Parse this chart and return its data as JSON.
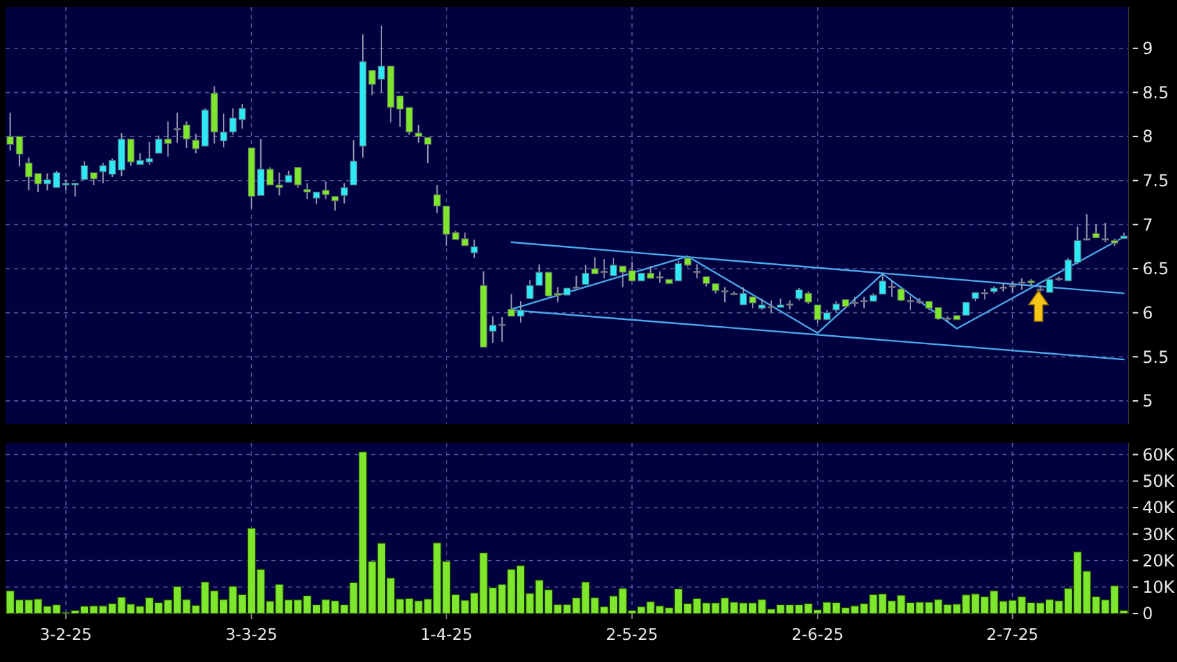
{
  "chart_data": [
    {
      "type": "candlestick",
      "ylim": [
        4.74,
        9.47
      ],
      "yticks": [
        5,
        5.5,
        6,
        6.5,
        7,
        7.5,
        8,
        8.5,
        9
      ],
      "tick_labels": "y",
      "grid": true,
      "categories": [
        null,
        null,
        null,
        null,
        null,
        null,
        null,
        null,
        null,
        null,
        null,
        null,
        null,
        null,
        null,
        null,
        null,
        null,
        null,
        null,
        null,
        null,
        null,
        null,
        null,
        null,
        null,
        null,
        null,
        null,
        null,
        null,
        null,
        null,
        null,
        null,
        null,
        null,
        null,
        null,
        null,
        null,
        null,
        null,
        null,
        null,
        null,
        null,
        null,
        null,
        null,
        null,
        null,
        null,
        null,
        null,
        null,
        null,
        null,
        null,
        null,
        null,
        null,
        null,
        null,
        null,
        null,
        null,
        null,
        null,
        null,
        null,
        null,
        null,
        null,
        null,
        null,
        null,
        null,
        null,
        null,
        null,
        null,
        null,
        null,
        null,
        null,
        null,
        null,
        null,
        null,
        null,
        null,
        null,
        null,
        null,
        null,
        null,
        null,
        null,
        null,
        null,
        null,
        null,
        null,
        null,
        null,
        null,
        null,
        null,
        null,
        null,
        null,
        null,
        null,
        null,
        null,
        null,
        null,
        null,
        null
      ],
      "ohlc": [
        [
          8.0,
          8.27,
          7.84,
          7.91
        ],
        [
          8.0,
          8.0,
          7.66,
          7.8
        ],
        [
          7.7,
          7.76,
          7.39,
          7.54
        ],
        [
          7.58,
          7.58,
          7.37,
          7.46
        ],
        [
          7.46,
          7.58,
          7.39,
          7.51
        ],
        [
          7.42,
          7.61,
          7.42,
          7.59
        ],
        [
          7.45,
          7.51,
          7.39,
          7.47
        ],
        [
          7.45,
          7.47,
          7.32,
          7.47
        ],
        [
          7.51,
          7.72,
          7.51,
          7.67
        ],
        [
          7.59,
          7.59,
          7.45,
          7.52
        ],
        [
          7.6,
          7.7,
          7.47,
          7.67
        ],
        [
          7.57,
          7.75,
          7.54,
          7.73
        ],
        [
          7.62,
          8.04,
          7.55,
          7.97
        ],
        [
          7.97,
          7.97,
          7.67,
          7.71
        ],
        [
          7.68,
          7.81,
          7.68,
          7.73
        ],
        [
          7.71,
          7.94,
          7.68,
          7.75
        ],
        [
          7.81,
          8.01,
          7.81,
          7.97
        ],
        [
          7.97,
          8.17,
          7.77,
          7.92
        ],
        [
          8.09,
          8.27,
          7.93,
          8.09
        ],
        [
          8.13,
          8.17,
          7.87,
          7.97
        ],
        [
          7.96,
          8.03,
          7.81,
          7.86
        ],
        [
          7.89,
          8.32,
          7.89,
          8.3
        ],
        [
          8.49,
          8.57,
          7.92,
          8.05
        ],
        [
          7.95,
          8.26,
          7.88,
          8.05
        ],
        [
          8.05,
          8.32,
          8.02,
          8.21
        ],
        [
          8.19,
          8.37,
          8.09,
          8.32
        ],
        [
          7.87,
          7.87,
          7.18,
          7.32
        ],
        [
          7.33,
          7.97,
          7.33,
          7.63
        ],
        [
          7.63,
          7.65,
          7.45,
          7.45
        ],
        [
          7.45,
          7.59,
          7.33,
          7.42
        ],
        [
          7.48,
          7.61,
          7.48,
          7.56
        ],
        [
          7.65,
          7.65,
          7.42,
          7.45
        ],
        [
          7.4,
          7.47,
          7.29,
          7.37
        ],
        [
          7.3,
          7.37,
          7.23,
          7.37
        ],
        [
          7.39,
          7.49,
          7.29,
          7.34
        ],
        [
          7.32,
          7.32,
          7.16,
          7.27
        ],
        [
          7.33,
          7.47,
          7.24,
          7.42
        ],
        [
          7.45,
          7.96,
          7.45,
          7.72
        ],
        [
          7.89,
          9.16,
          7.76,
          8.85
        ],
        [
          8.75,
          8.75,
          8.47,
          8.59
        ],
        [
          8.65,
          9.26,
          8.5,
          8.8
        ],
        [
          8.8,
          8.8,
          8.16,
          8.33
        ],
        [
          8.46,
          8.46,
          8.11,
          8.31
        ],
        [
          8.33,
          8.33,
          8.02,
          8.05
        ],
        [
          8.04,
          8.13,
          7.93,
          8.0
        ],
        [
          7.99,
          7.99,
          7.7,
          7.91
        ],
        [
          7.34,
          7.45,
          7.13,
          7.21
        ],
        [
          7.21,
          7.21,
          6.76,
          6.89
        ],
        [
          6.91,
          6.93,
          6.83,
          6.83
        ],
        [
          6.84,
          6.91,
          6.76,
          6.76
        ],
        [
          6.68,
          6.83,
          6.62,
          6.75
        ],
        [
          6.31,
          6.47,
          5.61,
          5.61
        ],
        [
          5.79,
          5.96,
          5.66,
          5.86
        ],
        [
          5.87,
          5.95,
          5.67,
          5.87
        ],
        [
          6.04,
          6.21,
          5.96,
          5.96
        ],
        [
          5.96,
          6.13,
          5.89,
          6.03
        ],
        [
          6.16,
          6.37,
          6.16,
          6.31
        ],
        [
          6.31,
          6.55,
          6.31,
          6.46
        ],
        [
          6.46,
          6.46,
          6.18,
          6.19
        ],
        [
          6.22,
          6.29,
          6.12,
          6.2
        ],
        [
          6.2,
          6.28,
          6.2,
          6.28
        ],
        [
          6.29,
          6.42,
          6.29,
          6.29
        ],
        [
          6.32,
          6.54,
          6.32,
          6.45
        ],
        [
          6.5,
          6.63,
          6.44,
          6.44
        ],
        [
          6.47,
          6.61,
          6.39,
          6.47
        ],
        [
          6.42,
          6.62,
          6.42,
          6.54
        ],
        [
          6.53,
          6.53,
          6.29,
          6.46
        ],
        [
          6.48,
          6.58,
          6.36,
          6.36
        ],
        [
          6.36,
          6.45,
          6.36,
          6.45
        ],
        [
          6.45,
          6.53,
          6.39,
          6.39
        ],
        [
          6.41,
          6.47,
          6.34,
          6.41
        ],
        [
          6.38,
          6.38,
          6.33,
          6.33
        ],
        [
          6.36,
          6.59,
          6.36,
          6.56
        ],
        [
          6.62,
          6.62,
          6.52,
          6.54
        ],
        [
          6.47,
          6.55,
          6.39,
          6.47
        ],
        [
          6.41,
          6.41,
          6.3,
          6.33
        ],
        [
          6.33,
          6.33,
          6.22,
          6.25
        ],
        [
          6.25,
          6.29,
          6.12,
          6.25
        ],
        [
          6.22,
          6.24,
          6.2,
          6.22
        ],
        [
          6.09,
          6.29,
          6.09,
          6.22
        ],
        [
          6.18,
          6.18,
          6.05,
          6.11
        ],
        [
          6.05,
          6.16,
          6.03,
          6.09
        ],
        [
          6.07,
          6.14,
          6.0,
          6.07
        ],
        [
          6.06,
          6.16,
          6.06,
          6.09
        ],
        [
          6.1,
          6.14,
          6.04,
          6.1
        ],
        [
          6.16,
          6.28,
          6.14,
          6.26
        ],
        [
          6.22,
          6.24,
          6.1,
          6.12
        ],
        [
          6.09,
          6.09,
          5.88,
          5.92
        ],
        [
          5.92,
          6.03,
          5.92,
          6.0
        ],
        [
          6.03,
          6.13,
          6.0,
          6.1
        ],
        [
          6.15,
          6.15,
          6.05,
          6.07
        ],
        [
          6.12,
          6.18,
          6.07,
          6.12
        ],
        [
          6.14,
          6.18,
          6.05,
          6.14
        ],
        [
          6.13,
          6.22,
          6.13,
          6.2
        ],
        [
          6.21,
          6.44,
          6.21,
          6.36
        ],
        [
          6.3,
          6.36,
          6.18,
          6.3
        ],
        [
          6.27,
          6.28,
          6.13,
          6.14
        ],
        [
          6.14,
          6.19,
          6.03,
          6.14
        ],
        [
          6.13,
          6.17,
          6.1,
          6.13
        ],
        [
          6.13,
          6.13,
          6.03,
          6.05
        ],
        [
          6.06,
          6.06,
          5.92,
          5.93
        ],
        [
          5.94,
          5.96,
          5.9,
          5.94
        ],
        [
          5.97,
          5.97,
          5.92,
          5.92
        ],
        [
          5.97,
          6.12,
          5.97,
          6.12
        ],
        [
          6.16,
          6.23,
          6.13,
          6.23
        ],
        [
          6.23,
          6.27,
          6.15,
          6.23
        ],
        [
          6.24,
          6.3,
          6.22,
          6.28
        ],
        [
          6.29,
          6.34,
          6.24,
          6.29
        ],
        [
          6.31,
          6.36,
          6.23,
          6.31
        ],
        [
          6.35,
          6.39,
          6.26,
          6.35
        ],
        [
          6.36,
          6.38,
          6.3,
          6.34
        ],
        [
          6.27,
          6.31,
          6.24,
          6.27
        ],
        [
          6.23,
          6.38,
          6.23,
          6.38
        ],
        [
          6.39,
          6.41,
          6.36,
          6.39
        ],
        [
          6.36,
          6.62,
          6.36,
          6.6
        ],
        [
          6.57,
          6.98,
          6.55,
          6.82
        ],
        [
          6.84,
          7.12,
          6.82,
          6.84
        ],
        [
          6.9,
          7.0,
          6.85,
          6.85
        ],
        [
          6.84,
          7.02,
          6.8,
          6.84
        ],
        [
          6.82,
          6.84,
          6.76,
          6.79
        ],
        [
          6.84,
          6.91,
          6.84,
          6.87
        ]
      ],
      "colors": [
        "#7ee62c",
        "#7ee62c",
        "#7ee62c",
        "#7ee62c",
        "#2ee8f4",
        "#2ee8f4",
        "#2ee8f4",
        "#2ee8f4",
        "#2ee8f4",
        "#7ee62c",
        "#2ee8f4",
        "#2ee8f4",
        "#2ee8f4",
        "#7ee62c",
        "#2ee8f4",
        "#2ee8f4",
        "#2ee8f4",
        "#7ee62c",
        "#a0a0b8",
        "#7ee62c",
        "#7ee62c",
        "#2ee8f4",
        "#7ee62c",
        "#2ee8f4",
        "#2ee8f4",
        "#2ee8f4",
        "#7ee62c",
        "#2ee8f4",
        "#7ee62c",
        "#7ee62c",
        "#2ee8f4",
        "#7ee62c",
        "#7ee62c",
        "#2ee8f4",
        "#7ee62c",
        "#7ee62c",
        "#2ee8f4",
        "#2ee8f4",
        "#2ee8f4",
        "#7ee62c",
        "#2ee8f4",
        "#7ee62c",
        "#7ee62c",
        "#7ee62c",
        "#7ee62c",
        "#7ee62c",
        "#7ee62c",
        "#7ee62c",
        "#7ee62c",
        "#7ee62c",
        "#2ee8f4",
        "#7ee62c",
        "#2ee8f4",
        "#a0a0b8",
        "#7ee62c",
        "#2ee8f4",
        "#2ee8f4",
        "#2ee8f4",
        "#7ee62c",
        "#7ee62c",
        "#2ee8f4",
        "#a0a0b8",
        "#2ee8f4",
        "#7ee62c",
        "#a0a0b8",
        "#2ee8f4",
        "#7ee62c",
        "#7ee62c",
        "#2ee8f4",
        "#7ee62c",
        "#a0a0b8",
        "#7ee62c",
        "#2ee8f4",
        "#7ee62c",
        "#a0a0b8",
        "#7ee62c",
        "#7ee62c",
        "#a0a0b8",
        "#a0a0b8",
        "#2ee8f4",
        "#7ee62c",
        "#2ee8f4",
        "#a0a0b8",
        "#2ee8f4",
        "#a0a0b8",
        "#2ee8f4",
        "#7ee62c",
        "#7ee62c",
        "#2ee8f4",
        "#2ee8f4",
        "#7ee62c",
        "#a0a0b8",
        "#a0a0b8",
        "#2ee8f4",
        "#2ee8f4",
        "#a0a0b8",
        "#7ee62c",
        "#a0a0b8",
        "#a0a0b8",
        "#7ee62c",
        "#7ee62c",
        "#a0a0b8",
        "#7ee62c",
        "#2ee8f4",
        "#2ee8f4",
        "#a0a0b8",
        "#2ee8f4",
        "#a0a0b8",
        "#a0a0b8",
        "#a0a0b8",
        "#7ee62c",
        "#a0a0b8",
        "#2ee8f4",
        "#a0a0b8",
        "#2ee8f4",
        "#2ee8f4",
        "#a0a0b8",
        "#7ee62c",
        "#a0a0b8",
        "#7ee62c",
        "#2ee8f4"
      ],
      "series": [
        {
          "type": "line",
          "color": "#4aa8e8",
          "values": [
            null,
            null,
            null,
            null,
            null,
            null,
            null,
            null,
            null,
            null,
            null,
            null,
            null,
            null,
            null,
            null,
            null,
            null,
            null,
            null,
            null,
            null,
            null,
            null,
            null,
            null,
            null,
            null,
            null,
            null,
            null,
            null,
            null,
            null,
            null,
            null,
            null,
            null,
            null,
            null,
            null,
            null,
            null,
            null,
            null,
            null,
            null,
            null,
            null,
            null,
            null,
            null,
            null,
            null,
            6.8,
            null,
            null,
            null,
            null,
            null,
            null,
            null,
            null,
            null,
            null,
            null,
            null,
            null,
            null,
            null,
            null,
            null,
            null,
            null,
            null,
            null,
            null,
            null,
            null,
            null,
            null,
            null,
            null,
            null,
            null,
            null,
            null,
            null,
            null,
            null,
            null,
            null,
            null,
            null,
            null,
            null,
            null,
            null,
            null,
            null,
            null,
            null,
            null,
            null,
            null,
            null,
            null,
            null,
            null,
            null,
            null,
            null,
            null,
            null,
            null,
            null,
            null,
            null,
            null,
            null,
            6.22
          ]
        },
        {
          "type": "line",
          "color": "#4aa8e8",
          "values": [
            null,
            null,
            null,
            null,
            null,
            null,
            null,
            null,
            null,
            null,
            null,
            null,
            null,
            null,
            null,
            null,
            null,
            null,
            null,
            null,
            null,
            null,
            null,
            null,
            null,
            null,
            null,
            null,
            null,
            null,
            null,
            null,
            null,
            null,
            null,
            null,
            null,
            null,
            null,
            null,
            null,
            null,
            null,
            null,
            null,
            null,
            null,
            null,
            null,
            null,
            null,
            null,
            null,
            null,
            6.03,
            null,
            null,
            null,
            null,
            null,
            null,
            null,
            null,
            null,
            null,
            null,
            null,
            null,
            null,
            null,
            null,
            null,
            null,
            null,
            null,
            null,
            null,
            null,
            null,
            null,
            null,
            null,
            null,
            null,
            null,
            null,
            null,
            null,
            null,
            null,
            null,
            null,
            null,
            null,
            null,
            null,
            null,
            null,
            null,
            null,
            null,
            null,
            null,
            null,
            null,
            null,
            null,
            null,
            null,
            null,
            null,
            null,
            null,
            null,
            null,
            null,
            null,
            null,
            null,
            null,
            5.47
          ]
        },
        {
          "type": "line",
          "color": "#4aa8e8",
          "values": [
            null,
            null,
            null,
            null,
            null,
            null,
            null,
            null,
            null,
            null,
            null,
            null,
            null,
            null,
            null,
            null,
            null,
            null,
            null,
            null,
            null,
            null,
            null,
            null,
            null,
            null,
            null,
            null,
            null,
            null,
            null,
            null,
            null,
            null,
            null,
            null,
            null,
            null,
            null,
            null,
            null,
            null,
            null,
            null,
            null,
            null,
            null,
            null,
            null,
            null,
            null,
            null,
            null,
            null,
            6.04,
            null,
            null,
            null,
            null,
            null,
            null,
            null,
            null,
            null,
            null,
            null,
            null,
            null,
            null,
            null,
            null,
            null,
            null,
            6.64,
            null,
            null,
            null,
            null,
            null,
            null,
            null,
            null,
            null,
            null,
            null,
            null,
            null,
            5.77,
            null,
            null,
            null,
            null,
            null,
            null,
            6.44,
            null,
            null,
            null,
            null,
            null,
            null,
            null,
            5.82,
            null,
            null,
            null,
            null,
            null,
            null,
            null,
            null,
            null,
            null,
            null,
            null,
            null,
            null,
            null,
            null,
            null,
            6.86
          ]
        }
      ]
    },
    {
      "type": "bar",
      "color": "#7ee62c",
      "ylim": [
        0,
        64.3
      ],
      "yticks": [
        {
          "value": 0,
          "label": "0"
        },
        {
          "value": 10,
          "label": "10K"
        },
        {
          "value": 20,
          "label": "20K"
        },
        {
          "value": 30,
          "label": "30K"
        },
        {
          "value": 40,
          "label": "40K"
        },
        {
          "value": 50,
          "label": "50K"
        },
        {
          "value": 60,
          "label": "60K"
        }
      ],
      "grid": true,
      "categories": [
        null,
        null,
        null,
        null,
        null,
        null,
        "3-2-25",
        null,
        null,
        null,
        null,
        null,
        null,
        null,
        null,
        null,
        null,
        null,
        null,
        null,
        null,
        null,
        null,
        null,
        null,
        null,
        "3-3-25",
        null,
        null,
        null,
        null,
        null,
        null,
        null,
        null,
        null,
        null,
        null,
        null,
        null,
        null,
        null,
        null,
        null,
        null,
        null,
        null,
        "1-4-25",
        null,
        null,
        null,
        null,
        null,
        null,
        null,
        null,
        null,
        null,
        null,
        null,
        null,
        null,
        null,
        null,
        null,
        null,
        null,
        "2-5-25",
        null,
        null,
        null,
        null,
        null,
        null,
        null,
        null,
        null,
        null,
        null,
        null,
        null,
        null,
        null,
        null,
        null,
        null,
        null,
        "2-6-25",
        null,
        null,
        null,
        null,
        null,
        null,
        null,
        null,
        null,
        null,
        null,
        null,
        null,
        null,
        null,
        null,
        null,
        null,
        null,
        null,
        "2-7-25",
        null,
        null,
        null,
        null,
        null,
        null,
        null,
        null,
        null,
        null,
        null,
        null
      ],
      "values": [
        8.6,
        5.2,
        5.2,
        5.5,
        2.8,
        3.3,
        0.5,
        1.2,
        2.8,
        2.9,
        2.9,
        3.8,
        6.2,
        3.6,
        2.8,
        6.0,
        4.1,
        5.2,
        10.2,
        5.3,
        3.1,
        11.9,
        8.6,
        5.3,
        10.3,
        7.2,
        32.2,
        16.7,
        4.7,
        11.0,
        5.2,
        5.2,
        6.7,
        3.3,
        5.3,
        4.8,
        3.3,
        11.7,
        61,
        19.7,
        26.6,
        13.4,
        5.5,
        5.7,
        4.8,
        5.5,
        26.7,
        19.7,
        7.2,
        5.0,
        7.8,
        22.9,
        9.8,
        11.0,
        16.7,
        18.1,
        7.6,
        12.6,
        9.0,
        3.4,
        3.4,
        5.9,
        11.9,
        6.0,
        2.6,
        6.6,
        9.5,
        1.2,
        2.6,
        4.5,
        2.9,
        2.2,
        9.3,
        3.8,
        5.7,
        4.0,
        4.0,
        5.9,
        4.3,
        4.0,
        4.0,
        5.3,
        1.7,
        3.3,
        3.3,
        3.3,
        3.8,
        1.4,
        4.3,
        4.1,
        2.2,
        2.9,
        3.8,
        7.2,
        7.4,
        4.8,
        6.9,
        4.1,
        4.3,
        4.3,
        5.3,
        3.4,
        3.6,
        7.1,
        7.4,
        6.4,
        8.6,
        4.7,
        5.0,
        6.4,
        4.1,
        4.0,
        5.3,
        4.8,
        9.5,
        23.3,
        16.0,
        6.4,
        5.2,
        10.5,
        1.2
      ]
    }
  ]
}
